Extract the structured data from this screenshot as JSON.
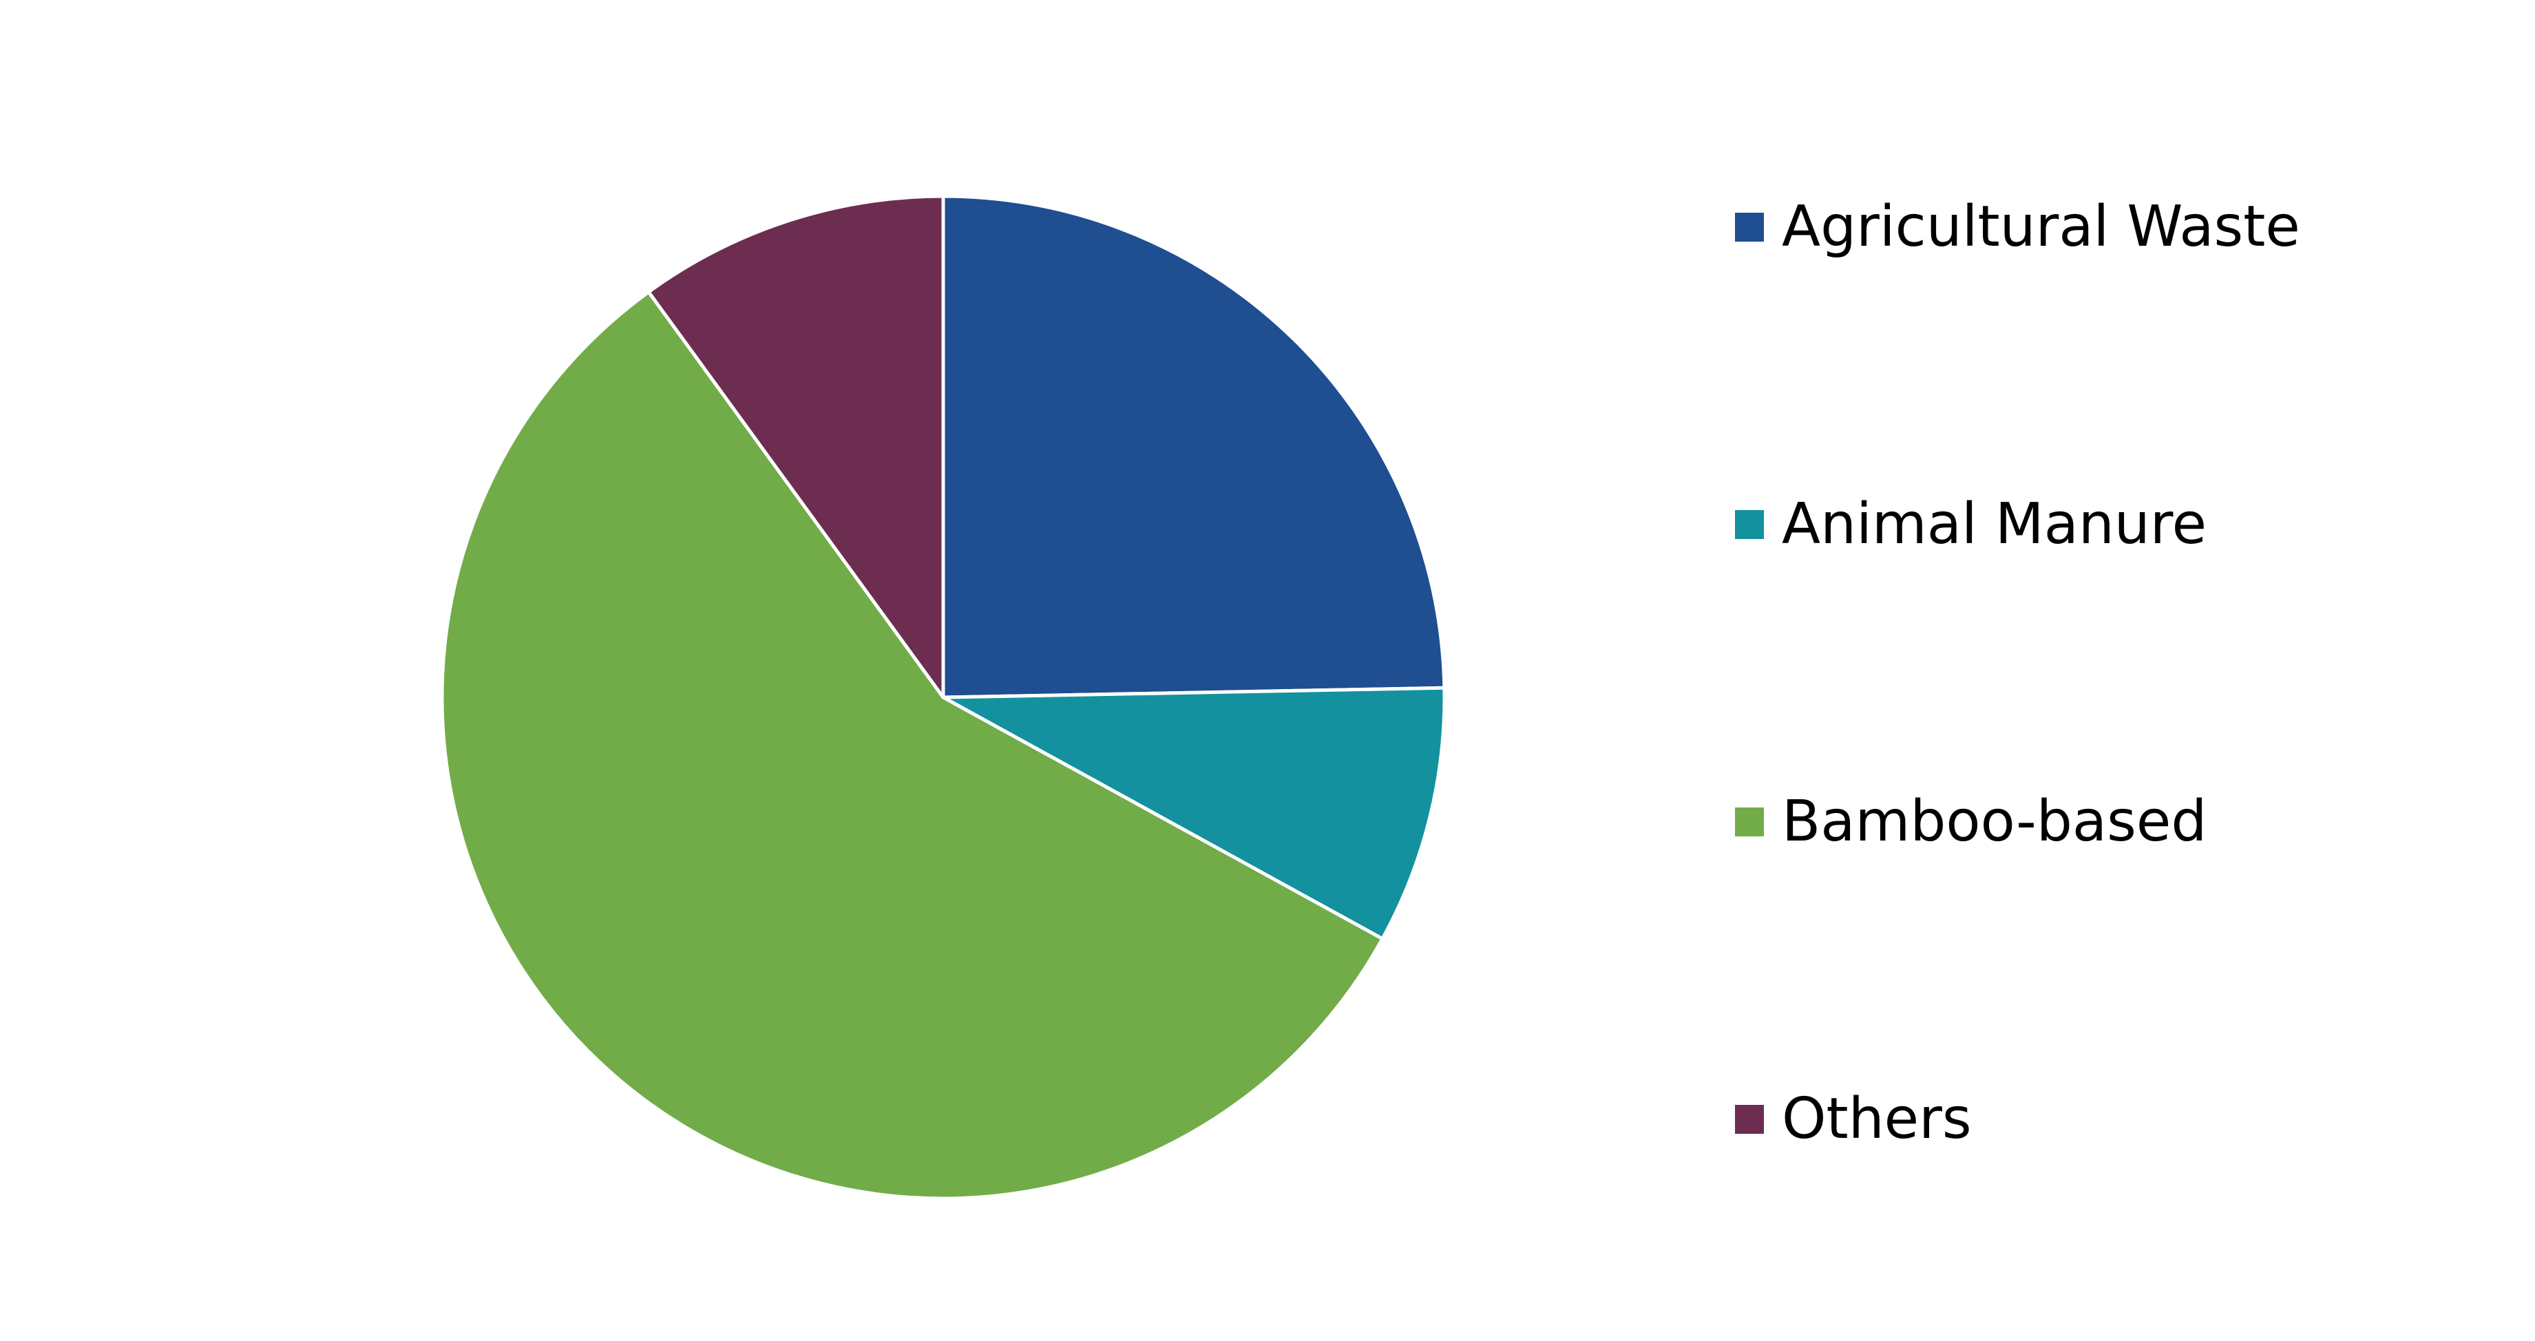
{
  "chart_data": {
    "type": "pie",
    "title": "",
    "start_angle_deg": 0,
    "direction": "clockwise",
    "slices": [
      {
        "name": "Agricultural Waste",
        "value": 24.7,
        "color": "#1f4e91"
      },
      {
        "name": "Animal Manure",
        "value": 8.3,
        "color": "#13919e"
      },
      {
        "name": "Bamboo-based",
        "value": 57.0,
        "color": "#72ac48"
      },
      {
        "name": "Others",
        "value": 10.0,
        "color": "#6c2d51"
      }
    ],
    "slice_border_color": "#ffffff",
    "legend_position": "right"
  }
}
